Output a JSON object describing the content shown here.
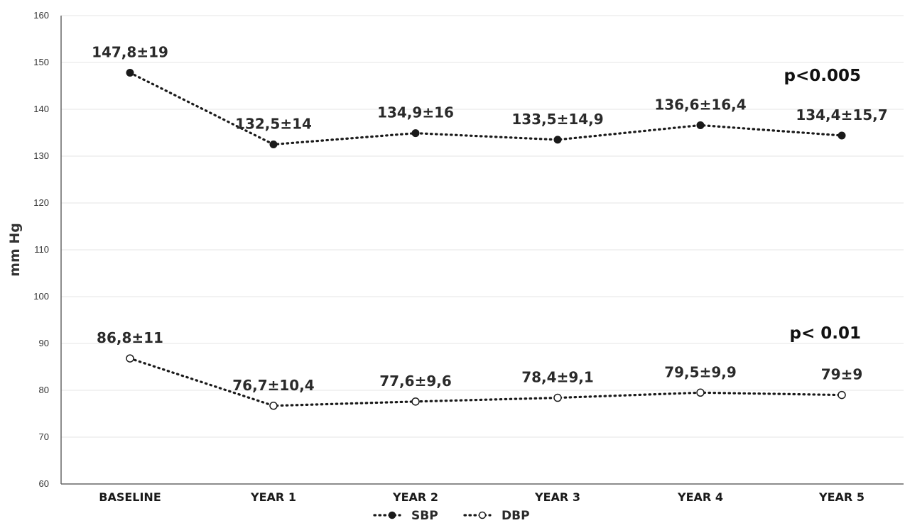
{
  "chart_data": {
    "type": "line",
    "ylabel": "mm Hg",
    "xlabel": "",
    "ylim": [
      60,
      160
    ],
    "yticks": [
      60,
      70,
      80,
      90,
      100,
      110,
      120,
      130,
      140,
      150,
      160
    ],
    "grid": true,
    "legend_position": "bottom",
    "categories": [
      "BASELINE",
      "YEAR 1",
      "YEAR 2",
      "YEAR 3",
      "YEAR 4",
      "YEAR 5"
    ],
    "series": [
      {
        "name": "SBP",
        "marker": "filled-circle",
        "line_style": "dotted",
        "color": "#1a1a1a",
        "values": [
          147.8,
          132.5,
          134.9,
          133.5,
          136.6,
          134.4
        ],
        "labels": [
          "147,8±19",
          "132,5±14",
          "134,9±16",
          "133,5±14,9",
          "136,6±16,4",
          "134,4±15,7"
        ]
      },
      {
        "name": "DBP",
        "marker": "open-circle",
        "line_style": "dotted",
        "color": "#1a1a1a",
        "values": [
          86.8,
          76.7,
          77.6,
          78.4,
          79.5,
          79.0
        ],
        "labels": [
          "86,8±11",
          "76,7±10,4",
          "77,6±9,6",
          "78,4±9,1",
          "79,5±9,9",
          "79±9"
        ]
      }
    ],
    "annotations": [
      {
        "text": "p<0.005",
        "series": "SBP"
      },
      {
        "text": "p< 0.01",
        "series": "DBP"
      }
    ]
  }
}
